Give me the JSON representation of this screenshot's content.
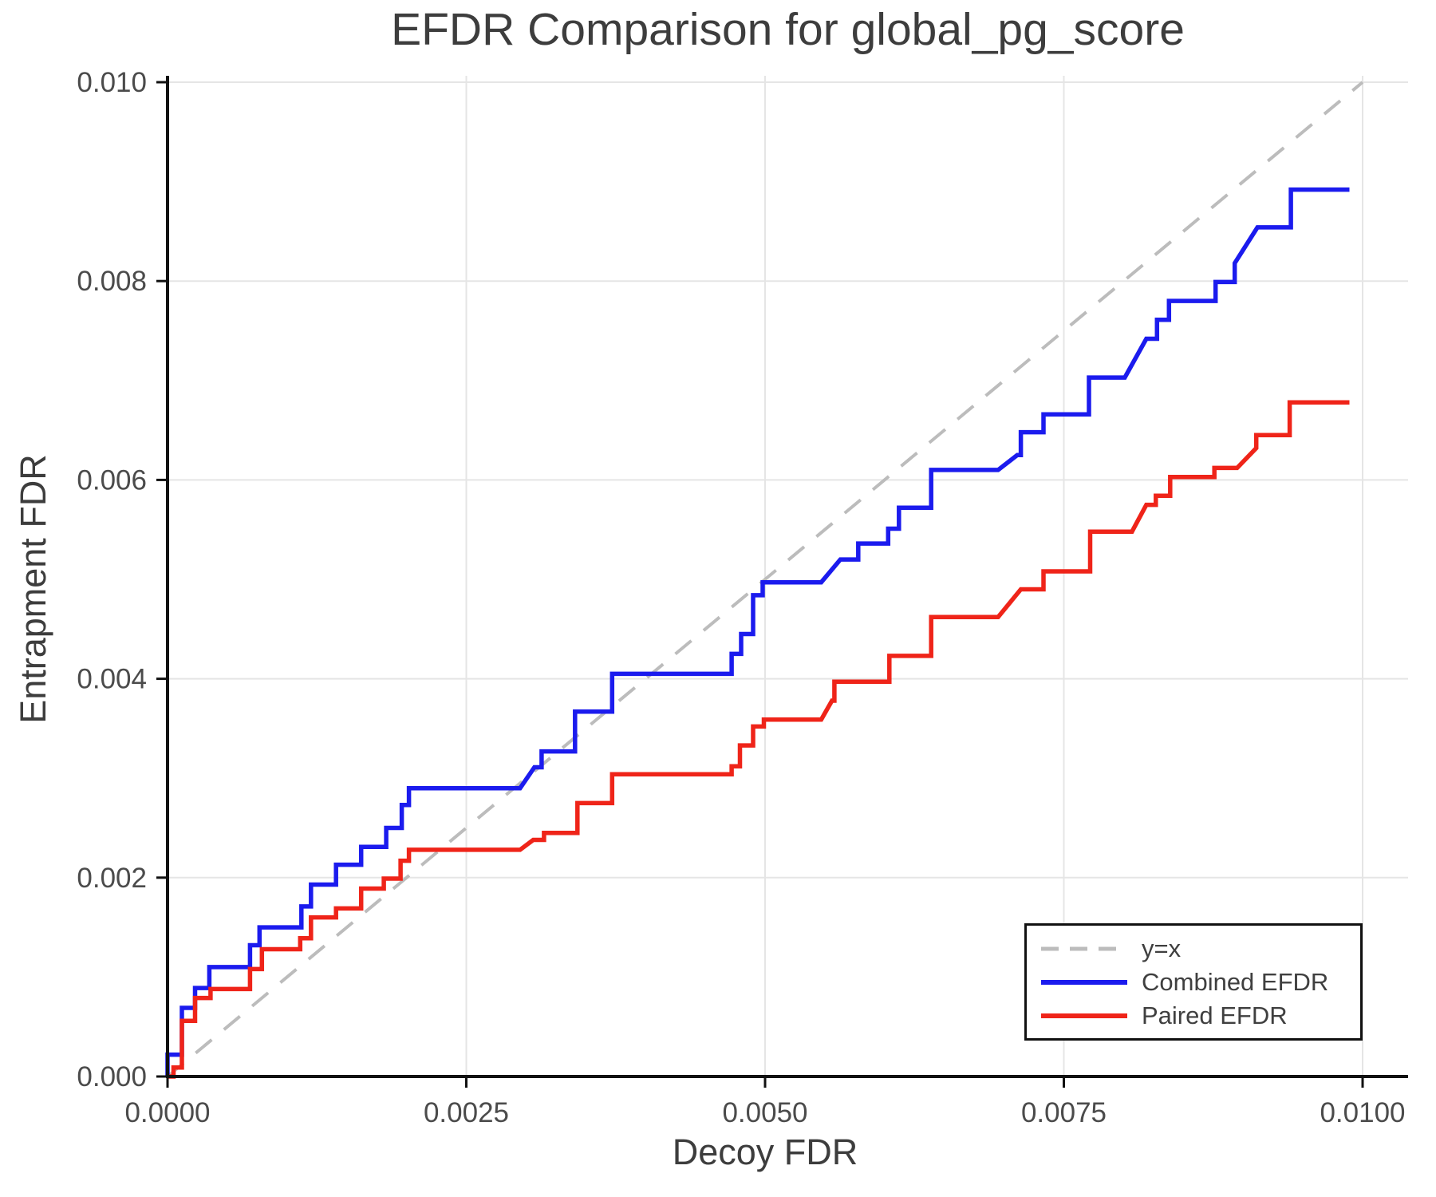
{
  "title": "EFDR Comparison for global_pg_score",
  "axes": {
    "x": {
      "label": "Decoy FDR",
      "ticks": [
        {
          "value": 0.0,
          "label": "0.0000"
        },
        {
          "value": 0.0025,
          "label": "0.0025"
        },
        {
          "value": 0.005,
          "label": "0.0050"
        },
        {
          "value": 0.0075,
          "label": "0.0075"
        },
        {
          "value": 0.01,
          "label": "0.0100"
        }
      ]
    },
    "y": {
      "label": "Entrapment FDR",
      "ticks": [
        {
          "value": 0.0,
          "label": "0.000"
        },
        {
          "value": 0.002,
          "label": "0.002"
        },
        {
          "value": 0.004,
          "label": "0.004"
        },
        {
          "value": 0.006,
          "label": "0.006"
        },
        {
          "value": 0.008,
          "label": "0.008"
        },
        {
          "value": 0.01,
          "label": "0.010"
        }
      ]
    }
  },
  "legend": {
    "items": [
      {
        "label": "y=x",
        "color": "#bcbcbc",
        "dashed": true
      },
      {
        "label": "Combined EFDR",
        "color": "#1b1bee",
        "dashed": false
      },
      {
        "label": "Paired EFDR",
        "color": "#ef2419",
        "dashed": false
      }
    ]
  },
  "colors": {
    "spine": "#111111",
    "grid": "#e5e5e5",
    "tick_text": "#4b4b4b",
    "title_text": "#3d3d3d",
    "reference": "#bcbcbc",
    "combined": "#1b1bee",
    "paired": "#ef2419"
  },
  "chart_data": {
    "type": "line",
    "title": "EFDR Comparison for global_pg_score",
    "xlabel": "Decoy FDR",
    "ylabel": "Entrapment FDR",
    "xlim": [
      0.0,
      0.01
    ],
    "ylim": [
      0.0,
      0.01
    ],
    "grid": true,
    "legend_position": "lower right",
    "reference_line": {
      "name": "y=x",
      "from": [
        0.0,
        0.0
      ],
      "to": [
        0.01,
        0.01
      ],
      "style": "dashed",
      "color": "#bcbcbc"
    },
    "series": [
      {
        "name": "Combined EFDR",
        "color": "#1b1bee",
        "points": [
          [
            0.0,
            0.0
          ],
          [
            0.0,
            0.00022
          ],
          [
            0.00012,
            0.00022
          ],
          [
            0.00012,
            0.00069
          ],
          [
            0.00023,
            0.00069
          ],
          [
            0.00023,
            0.00089
          ],
          [
            0.00035,
            0.00089
          ],
          [
            0.00035,
            0.0011
          ],
          [
            0.00069,
            0.0011
          ],
          [
            0.00069,
            0.00132
          ],
          [
            0.00077,
            0.00132
          ],
          [
            0.00077,
            0.0015
          ],
          [
            0.00112,
            0.0015
          ],
          [
            0.00112,
            0.00171
          ],
          [
            0.0012,
            0.00171
          ],
          [
            0.0012,
            0.00193
          ],
          [
            0.00141,
            0.00193
          ],
          [
            0.00141,
            0.00213
          ],
          [
            0.00162,
            0.00213
          ],
          [
            0.00162,
            0.00231
          ],
          [
            0.00183,
            0.00231
          ],
          [
            0.00183,
            0.0025
          ],
          [
            0.00196,
            0.0025
          ],
          [
            0.00196,
            0.00273
          ],
          [
            0.00202,
            0.00273
          ],
          [
            0.00202,
            0.0029
          ],
          [
            0.00295,
            0.0029
          ],
          [
            0.00307,
            0.00311
          ],
          [
            0.00313,
            0.00311
          ],
          [
            0.00313,
            0.00327
          ],
          [
            0.00341,
            0.00327
          ],
          [
            0.00341,
            0.00367
          ],
          [
            0.00372,
            0.00367
          ],
          [
            0.00372,
            0.00405
          ],
          [
            0.00472,
            0.00405
          ],
          [
            0.00472,
            0.00425
          ],
          [
            0.0048,
            0.00425
          ],
          [
            0.0048,
            0.00445
          ],
          [
            0.0049,
            0.00445
          ],
          [
            0.0049,
            0.00484
          ],
          [
            0.00498,
            0.00484
          ],
          [
            0.00498,
            0.00497
          ],
          [
            0.00547,
            0.00497
          ],
          [
            0.00563,
            0.0052
          ],
          [
            0.00578,
            0.0052
          ],
          [
            0.00578,
            0.00536
          ],
          [
            0.00603,
            0.00536
          ],
          [
            0.00603,
            0.00551
          ],
          [
            0.00612,
            0.00551
          ],
          [
            0.00612,
            0.00572
          ],
          [
            0.00639,
            0.00572
          ],
          [
            0.00639,
            0.0061
          ],
          [
            0.00695,
            0.0061
          ],
          [
            0.00711,
            0.00625
          ],
          [
            0.00714,
            0.00625
          ],
          [
            0.00714,
            0.00648
          ],
          [
            0.00733,
            0.00648
          ],
          [
            0.00733,
            0.00666
          ],
          [
            0.00771,
            0.00666
          ],
          [
            0.00771,
            0.00703
          ],
          [
            0.00801,
            0.00703
          ],
          [
            0.00819,
            0.00742
          ],
          [
            0.00828,
            0.00742
          ],
          [
            0.00828,
            0.00761
          ],
          [
            0.00838,
            0.00761
          ],
          [
            0.00838,
            0.0078
          ],
          [
            0.00877,
            0.0078
          ],
          [
            0.00877,
            0.00799
          ],
          [
            0.00893,
            0.00799
          ],
          [
            0.00893,
            0.00818
          ],
          [
            0.00912,
            0.00854
          ],
          [
            0.0094,
            0.00854
          ],
          [
            0.0094,
            0.00892
          ],
          [
            0.00989,
            0.00892
          ]
        ]
      },
      {
        "name": "Paired EFDR",
        "color": "#ef2419",
        "points": [
          [
            0.0,
            0.0
          ],
          [
            5e-05,
            0.0
          ],
          [
            5e-05,
            9e-05
          ],
          [
            0.00012,
            9e-05
          ],
          [
            0.00012,
            0.00056
          ],
          [
            0.00023,
            0.00056
          ],
          [
            0.00023,
            0.00079
          ],
          [
            0.00036,
            0.00079
          ],
          [
            0.00036,
            0.00088
          ],
          [
            0.00069,
            0.00088
          ],
          [
            0.00069,
            0.00108
          ],
          [
            0.00079,
            0.00108
          ],
          [
            0.00079,
            0.00128
          ],
          [
            0.00111,
            0.00128
          ],
          [
            0.00111,
            0.00139
          ],
          [
            0.0012,
            0.00139
          ],
          [
            0.0012,
            0.0016
          ],
          [
            0.00141,
            0.0016
          ],
          [
            0.00141,
            0.00169
          ],
          [
            0.00162,
            0.00169
          ],
          [
            0.00162,
            0.00189
          ],
          [
            0.00181,
            0.00189
          ],
          [
            0.00181,
            0.00199
          ],
          [
            0.00195,
            0.00199
          ],
          [
            0.00195,
            0.00217
          ],
          [
            0.00202,
            0.00217
          ],
          [
            0.00202,
            0.00228
          ],
          [
            0.00295,
            0.00228
          ],
          [
            0.00306,
            0.00238
          ],
          [
            0.00315,
            0.00238
          ],
          [
            0.00315,
            0.00245
          ],
          [
            0.00343,
            0.00245
          ],
          [
            0.00343,
            0.00275
          ],
          [
            0.00372,
            0.00275
          ],
          [
            0.00372,
            0.00304
          ],
          [
            0.00472,
            0.00304
          ],
          [
            0.00472,
            0.00312
          ],
          [
            0.00479,
            0.00312
          ],
          [
            0.00479,
            0.00333
          ],
          [
            0.0049,
            0.00333
          ],
          [
            0.0049,
            0.00352
          ],
          [
            0.00499,
            0.00352
          ],
          [
            0.00499,
            0.00359
          ],
          [
            0.00547,
            0.00359
          ],
          [
            0.00556,
            0.00378
          ],
          [
            0.00558,
            0.00378
          ],
          [
            0.00558,
            0.00397
          ],
          [
            0.00604,
            0.00397
          ],
          [
            0.00604,
            0.00423
          ],
          [
            0.00639,
            0.00423
          ],
          [
            0.00639,
            0.00462
          ],
          [
            0.00695,
            0.00462
          ],
          [
            0.00714,
            0.0049
          ],
          [
            0.00733,
            0.0049
          ],
          [
            0.00733,
            0.00508
          ],
          [
            0.00772,
            0.00508
          ],
          [
            0.00772,
            0.00548
          ],
          [
            0.00807,
            0.00548
          ],
          [
            0.00819,
            0.00575
          ],
          [
            0.00827,
            0.00575
          ],
          [
            0.00827,
            0.00584
          ],
          [
            0.00839,
            0.00584
          ],
          [
            0.00839,
            0.00603
          ],
          [
            0.00876,
            0.00603
          ],
          [
            0.00876,
            0.00612
          ],
          [
            0.00895,
            0.00612
          ],
          [
            0.00911,
            0.00632
          ],
          [
            0.00911,
            0.00645
          ],
          [
            0.00939,
            0.00645
          ],
          [
            0.00939,
            0.00678
          ],
          [
            0.00989,
            0.00678
          ]
        ]
      }
    ]
  }
}
